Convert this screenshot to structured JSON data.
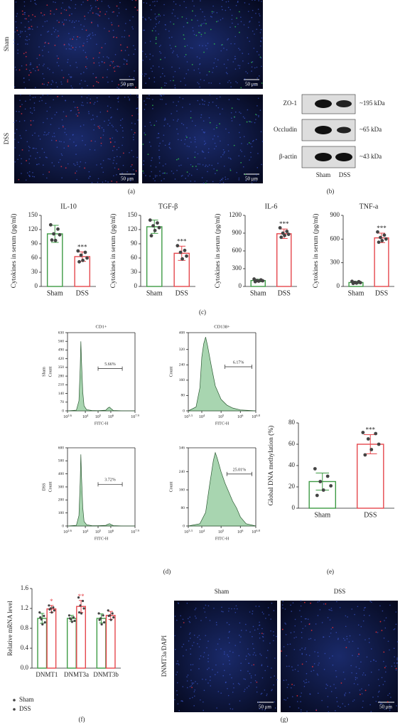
{
  "figure": {
    "panel_labels": [
      "(a)",
      "(b)",
      "(c)",
      "(d)",
      "(e)",
      "(f)",
      "(g)"
    ],
    "microscopy": {
      "rows": [
        "Sham",
        "DSS"
      ],
      "scale_bar": "50 μm"
    },
    "western_blot": {
      "bands": [
        {
          "name": "ZO-1",
          "size": "~195 kDa"
        },
        {
          "name": "Occludin",
          "size": "~65 kDa"
        },
        {
          "name": "β-actin",
          "size": "~43 kDa"
        }
      ],
      "lanes": [
        "Sham",
        "DSS"
      ]
    },
    "ihc": {
      "columns": [
        "Sham",
        "DSS"
      ],
      "stain": "DNMT3a/DAPI",
      "scale_bar": "50 μm"
    }
  },
  "chart_data": [
    {
      "type": "bar",
      "title": "IL-10",
      "ylabel": "Cytokines in serum (pg/ml)",
      "categories": [
        "Sham",
        "DSS"
      ],
      "values": [
        111,
        63
      ],
      "errors": [
        18,
        10
      ],
      "points": [
        [
          130,
          121,
          111,
          109,
          97,
          98
        ],
        [
          75,
          72,
          66,
          60,
          55,
          52
        ]
      ],
      "colors": [
        "#3e9b45",
        "#e5474d"
      ],
      "ylim": [
        0,
        150
      ],
      "yticks": [
        0,
        30,
        60,
        90,
        120,
        150
      ],
      "significance": [
        {
          "index": 1,
          "text": "***"
        }
      ]
    },
    {
      "type": "bar",
      "title": "TGF-β",
      "ylabel": "Cytokines in serum (pg/ml)",
      "categories": [
        "Sham",
        "DSS"
      ],
      "values": [
        126,
        70
      ],
      "errors": [
        14,
        15
      ],
      "points": [
        [
          140,
          134,
          128,
          124,
          118,
          107
        ],
        [
          86,
          76,
          72,
          64,
          58
        ]
      ],
      "colors": [
        "#3e9b45",
        "#e5474d"
      ],
      "ylim": [
        0,
        150
      ],
      "yticks": [
        0,
        30,
        60,
        90,
        120,
        150
      ],
      "significance": [
        {
          "index": 1,
          "text": "***"
        }
      ]
    },
    {
      "type": "bar",
      "title": "IL-6",
      "ylabel": "Cytokines in serum (pg/ml)",
      "categories": [
        "Sham",
        "DSS"
      ],
      "values": [
        100,
        890
      ],
      "errors": [
        22,
        80
      ],
      "points": [
        [
          125,
          110,
          100,
          95,
          90,
          80
        ],
        [
          990,
          930,
          900,
          880,
          860,
          830
        ]
      ],
      "colors": [
        "#3e9b45",
        "#e5474d"
      ],
      "ylim": [
        0,
        1200
      ],
      "yticks": [
        0,
        300,
        600,
        900,
        1200
      ],
      "significance": [
        {
          "index": 1,
          "text": "***"
        }
      ]
    },
    {
      "type": "bar",
      "title": "TNF-a",
      "ylabel": "Cytokines in serum (pg/ml)",
      "categories": [
        "Sham",
        "DSS"
      ],
      "values": [
        50,
        615
      ],
      "errors": [
        15,
        60
      ],
      "points": [
        [
          65,
          60,
          50,
          48,
          42,
          38
        ],
        [
          690,
          650,
          620,
          600,
          580,
          560
        ]
      ],
      "colors": [
        "#3e9b45",
        "#e5474d"
      ],
      "ylim": [
        0,
        900
      ],
      "yticks": [
        0,
        300,
        600,
        900
      ],
      "significance": [
        {
          "index": 1,
          "text": "***"
        }
      ]
    },
    {
      "type": "bar",
      "ylabel": "Global DNA methylation (%)",
      "categories": [
        "Sham",
        "DSS"
      ],
      "values": [
        25,
        60
      ],
      "errors": [
        8,
        9
      ],
      "points": [
        [
          37,
          30,
          25,
          21,
          17,
          12
        ],
        [
          71,
          70,
          65,
          60,
          55,
          50
        ]
      ],
      "colors": [
        "#3e9b45",
        "#e5474d"
      ],
      "ylim": [
        0,
        80
      ],
      "yticks": [
        0,
        20,
        40,
        60,
        80
      ],
      "significance": [
        {
          "index": 1,
          "text": "***"
        }
      ]
    },
    {
      "type": "grouped_bar",
      "ylabel": "Relative mRNA level",
      "categories": [
        "DNMT1",
        "DNMT3a",
        "DNMT3b"
      ],
      "series": [
        {
          "name": "Sham",
          "color": "#3e9b45",
          "values": [
            1.0,
            1.0,
            1.0
          ],
          "errors": [
            0.1,
            0.06,
            0.09
          ],
          "points": [
            [
              1.12,
              1.05,
              0.98,
              0.92,
              0.88,
              1.02
            ],
            [
              1.06,
              1.02,
              0.98,
              0.95,
              0.93,
              1.0
            ],
            [
              1.1,
              1.06,
              1.0,
              0.92,
              0.88,
              0.97
            ]
          ]
        },
        {
          "name": "DSS",
          "color": "#e5474d",
          "values": [
            1.19,
            1.24,
            1.06
          ],
          "errors": [
            0.07,
            0.12,
            0.08
          ],
          "points": [
            [
              1.26,
              1.22,
              1.2,
              1.16,
              1.12,
              1.18
            ],
            [
              1.42,
              1.35,
              1.26,
              1.2,
              1.1,
              1.12
            ],
            [
              1.16,
              1.1,
              1.06,
              1.02,
              0.97,
              1.05
            ]
          ]
        }
      ],
      "ylim": [
        0,
        1.6
      ],
      "yticks": [
        {
          "value": 0,
          "label": "0.0"
        },
        0.4,
        0.8,
        1.2,
        1.6
      ],
      "legend": "bottom-left",
      "significance": [
        {
          "series": 1,
          "index": 0,
          "text": "*"
        },
        {
          "series": 1,
          "index": 1,
          "text": "**"
        }
      ]
    },
    {
      "type": "flow",
      "title": "CD1+",
      "group": "Sham",
      "xlabel": "FITC-H",
      "ylabel": "Count",
      "x_log_base": 10,
      "color": "#a8d5b0",
      "xlim": [
        2.6,
        7.9
      ],
      "xticks": [
        2.6,
        4,
        5,
        6,
        7.9
      ],
      "ylim": [
        0,
        630
      ],
      "yticks": [
        0,
        70,
        140,
        210,
        280,
        350,
        420,
        490,
        560,
        630
      ],
      "x": [
        2.6,
        3.3,
        3.5,
        3.6,
        3.65,
        3.7,
        3.8,
        3.9,
        4.1,
        4.5,
        5.0,
        5.6,
        5.8,
        5.9,
        6.0,
        6.2,
        7.0,
        7.9
      ],
      "values": [
        0,
        5,
        80,
        350,
        560,
        400,
        150,
        40,
        10,
        3,
        2,
        5,
        25,
        30,
        20,
        3,
        0,
        0
      ],
      "gate": {
        "from": 5.0,
        "to": 6.9,
        "y": 340,
        "label": "5.66%"
      }
    },
    {
      "type": "flow",
      "title": "CD138+",
      "xlabel": "FITC-H",
      "ylabel": "Count",
      "x_log_base": 10,
      "color": "#a8d5b0",
      "xlim": [
        3.3,
        6.8
      ],
      "xticks": [
        3.3,
        4,
        5,
        6,
        6.8
      ],
      "ylim": [
        0,
        408
      ],
      "yticks": [
        0,
        80,
        160,
        240,
        320,
        408
      ],
      "x": [
        3.3,
        3.7,
        3.9,
        4.0,
        4.1,
        4.2,
        4.3,
        4.5,
        4.7,
        5.0,
        5.3,
        5.6,
        6.0,
        6.8
      ],
      "values": [
        0,
        20,
        120,
        280,
        350,
        385,
        340,
        230,
        130,
        60,
        30,
        15,
        5,
        0
      ],
      "gate": {
        "from": 5.2,
        "to": 6.6,
        "y": 230,
        "label": "6.17%"
      }
    },
    {
      "type": "flow",
      "group": "DSS",
      "xlabel": "FITC-H",
      "ylabel": "Count",
      "x_log_base": 10,
      "color": "#a8d5b0",
      "xlim": [
        2.6,
        7.9
      ],
      "xticks": [
        2.6,
        4,
        5,
        6,
        7.9
      ],
      "ylim": [
        0,
        600
      ],
      "yticks": [
        0,
        100,
        200,
        300,
        400,
        500,
        600
      ],
      "x": [
        2.6,
        3.3,
        3.5,
        3.6,
        3.65,
        3.7,
        3.8,
        3.9,
        4.1,
        4.5,
        5.0,
        5.6,
        5.8,
        5.9,
        6.0,
        6.2,
        7.0,
        7.9
      ],
      "values": [
        0,
        5,
        80,
        340,
        550,
        380,
        140,
        35,
        10,
        3,
        2,
        5,
        15,
        18,
        12,
        3,
        0,
        0
      ],
      "gate": {
        "from": 5.0,
        "to": 6.9,
        "y": 320,
        "label": "3.72%"
      }
    },
    {
      "type": "flow",
      "xlabel": "FITC-H",
      "ylabel": "Count",
      "x_log_base": 10,
      "color": "#a8d5b0",
      "xlim": [
        3.3,
        6.8
      ],
      "xticks": [
        3.3,
        4,
        5,
        6,
        6.8
      ],
      "ylim": [
        0,
        346
      ],
      "yticks": [
        0,
        80,
        160,
        240,
        346
      ],
      "x": [
        3.3,
        3.9,
        4.2,
        4.4,
        4.6,
        4.7,
        4.8,
        5.0,
        5.2,
        5.4,
        5.6,
        5.8,
        6.0,
        6.3,
        6.8
      ],
      "values": [
        0,
        10,
        60,
        180,
        290,
        325,
        300,
        240,
        190,
        150,
        110,
        80,
        40,
        10,
        0
      ],
      "gate": {
        "from": 5.3,
        "to": 6.6,
        "y": 230,
        "label": "25.01%"
      }
    }
  ]
}
